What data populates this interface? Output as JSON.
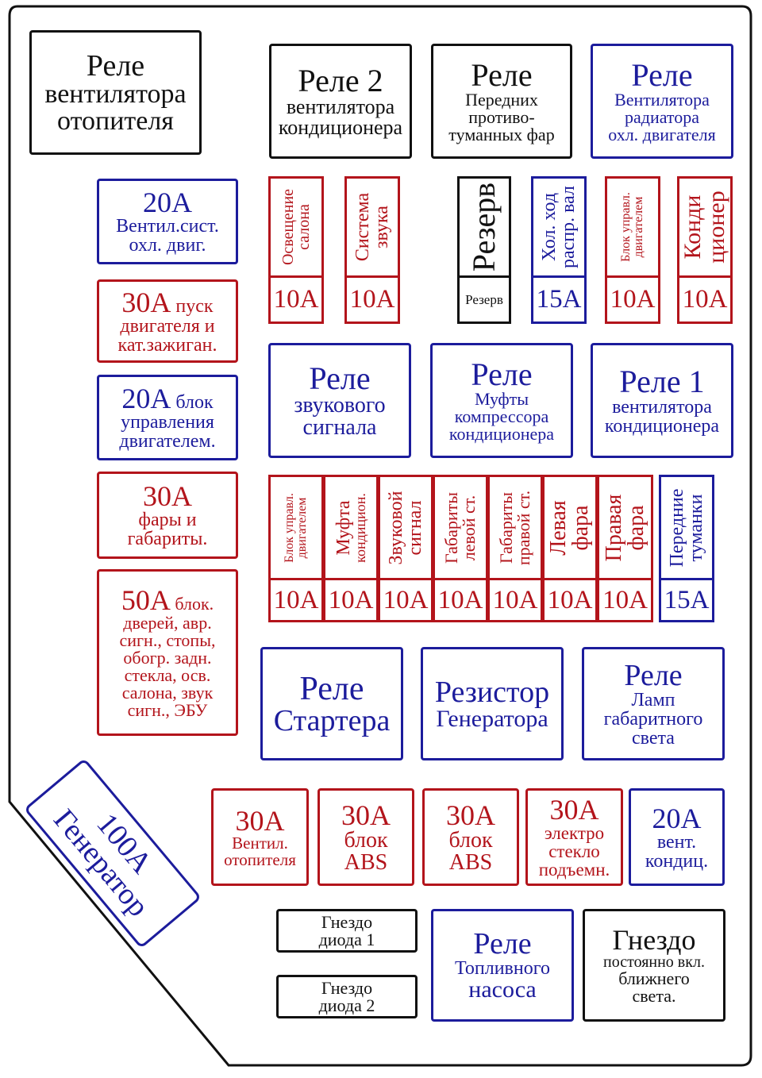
{
  "colors": {
    "red": "#b3141b",
    "blue": "#1c1c9c",
    "black": "#111111"
  },
  "boxes": [
    {
      "id": "relay-heater-fan",
      "color": "black",
      "lines": [
        "Реле",
        "вентилятора",
        "отопителя"
      ]
    },
    {
      "id": "relay-2-ac-fan",
      "color": "black",
      "lines": [
        "Реле 2",
        "вентилятора",
        "кондиционера"
      ]
    },
    {
      "id": "relay-fog-lights",
      "color": "black",
      "lines": [
        "Реле",
        "Передних",
        "противо-",
        "туманных фар"
      ]
    },
    {
      "id": "relay-radiator-fan",
      "color": "blue",
      "lines": [
        "Реле",
        "Вентилятора",
        "радиатора",
        "охл. двигателя"
      ]
    },
    {
      "id": "fuse-20a-cooling-fan",
      "color": "blue",
      "lines": [
        "20A",
        "Вентил.сист.",
        "охл. двиг."
      ]
    },
    {
      "id": "fuse-30a-start",
      "color": "red",
      "lines": [
        "30A пуск",
        "двигателя и",
        "кат.зажиган."
      ]
    },
    {
      "id": "fuse-20a-ecu",
      "color": "blue",
      "lines": [
        "20A блок",
        "управления",
        "двигателем."
      ]
    },
    {
      "id": "fuse-30a-headlights",
      "color": "red",
      "lines": [
        "30A",
        "фары и",
        "габариты."
      ]
    },
    {
      "id": "fuse-50a-multi",
      "color": "red",
      "lines": [
        "50A блок.",
        "дверей, авр.",
        "сигн., стопы,",
        "обогр. задн.",
        "стекла, осв.",
        "салона, звук",
        "сигн., ЭБУ"
      ]
    },
    {
      "id": "relay-horn",
      "color": "blue",
      "lines": [
        "Реле",
        "звукового",
        "сигнала"
      ]
    },
    {
      "id": "relay-ac-clutch",
      "color": "blue",
      "lines": [
        "Реле",
        "Муфты",
        "компрессора",
        "кондиционера"
      ]
    },
    {
      "id": "relay-1-ac-fan",
      "color": "blue",
      "lines": [
        "Реле 1",
        "вентилятора",
        "кондиционера"
      ]
    },
    {
      "id": "relay-starter",
      "color": "blue",
      "lines": [
        "Реле",
        "Стартера"
      ]
    },
    {
      "id": "resistor-generator",
      "color": "blue",
      "lines": [
        "Резистор",
        "Генератора"
      ]
    },
    {
      "id": "relay-parking-lamps",
      "color": "blue",
      "lines": [
        "Реле",
        "Ламп",
        "габаритного",
        "света"
      ]
    },
    {
      "id": "fuse-30a-heater-fan",
      "color": "red",
      "lines": [
        "30A",
        "Вентил.",
        "отопителя"
      ]
    },
    {
      "id": "fuse-30a-abs-1",
      "color": "red",
      "lines": [
        "30A",
        "блок",
        "ABS"
      ]
    },
    {
      "id": "fuse-30a-abs-2",
      "color": "red",
      "lines": [
        "30A",
        "блок",
        "ABS"
      ]
    },
    {
      "id": "fuse-30a-windows",
      "color": "red",
      "lines": [
        "30A",
        "электро",
        "стекло",
        "подъемн."
      ]
    },
    {
      "id": "fuse-20a-ac-fan",
      "color": "blue",
      "lines": [
        "20A",
        "вент.",
        "кондиц."
      ]
    },
    {
      "id": "socket-diode-1",
      "color": "black",
      "lines": [
        "Гнездо",
        "диода 1"
      ]
    },
    {
      "id": "socket-diode-2",
      "color": "black",
      "lines": [
        "Гнездо",
        "диода 2"
      ]
    },
    {
      "id": "relay-fuel-pump",
      "color": "blue",
      "lines": [
        "Реле",
        "Топливного",
        "насоса"
      ]
    },
    {
      "id": "socket-low-beam",
      "color": "black",
      "lines": [
        "Гнездо",
        "постоянно вкл.",
        "ближнего",
        "света."
      ]
    },
    {
      "id": "fuse-100a-generator",
      "color": "blue",
      "lines": [
        "100A",
        "Генератор"
      ]
    }
  ],
  "vertical_fuses": [
    {
      "id": "fuse-interior-light",
      "color": "red",
      "lines": [
        "Освещение",
        "салона"
      ],
      "rating": "10A"
    },
    {
      "id": "fuse-audio",
      "color": "red",
      "lines": [
        "Система",
        "звука"
      ],
      "rating": "10A"
    },
    {
      "id": "fuse-reserve",
      "color": "black",
      "lines": [
        "Резерв"
      ],
      "rating": "Резерв"
    },
    {
      "id": "fuse-camshaft",
      "color": "blue",
      "lines": [
        "Хол. ход",
        "распр. вал"
      ],
      "rating": "15A"
    },
    {
      "id": "fuse-ecu-top",
      "color": "red",
      "lines": [
        "Блок управл.",
        "двигателем"
      ],
      "rating": "10A"
    },
    {
      "id": "fuse-ac-top",
      "color": "red",
      "lines": [
        "Конди",
        "ционер"
      ],
      "rating": "10A"
    },
    {
      "id": "fuse-ecu-mid",
      "color": "red",
      "lines": [
        "Блок управл.",
        "двигателем"
      ],
      "rating": "10A"
    },
    {
      "id": "fuse-ac-clutch",
      "color": "red",
      "lines": [
        "Муфта",
        "кондицион."
      ],
      "rating": "10A"
    },
    {
      "id": "fuse-horn",
      "color": "red",
      "lines": [
        "Звуковой",
        "сигнал"
      ],
      "rating": "10A"
    },
    {
      "id": "fuse-parking-left",
      "color": "red",
      "lines": [
        "Габариты",
        "левой ст."
      ],
      "rating": "10A"
    },
    {
      "id": "fuse-parking-right",
      "color": "red",
      "lines": [
        "Габариты",
        "правой ст."
      ],
      "rating": "10A"
    },
    {
      "id": "fuse-headlight-left",
      "color": "red",
      "lines": [
        "Левая",
        "фара"
      ],
      "rating": "10A"
    },
    {
      "id": "fuse-headlight-right",
      "color": "red",
      "lines": [
        "Правая",
        "фара"
      ],
      "rating": "10A"
    },
    {
      "id": "fuse-front-fog",
      "color": "blue",
      "lines": [
        "Передние",
        "туманки"
      ],
      "rating": "15A"
    }
  ]
}
